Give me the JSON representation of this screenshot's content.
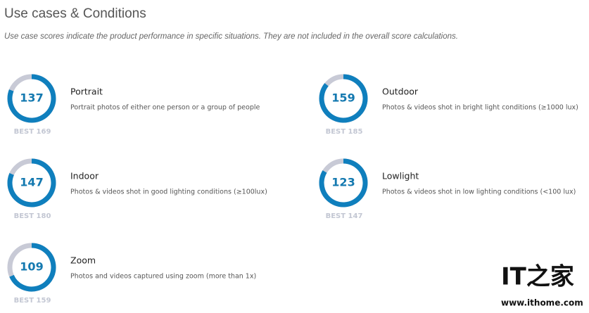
{
  "header": {
    "title": "Use cases & Conditions",
    "subtitle": "Use case scores indicate the product performance in specific situations. They are not included in the overall score calculations."
  },
  "items": [
    {
      "score": 137,
      "best": {
        "value": 169,
        "label": "BEST 169"
      },
      "name": "Portrait",
      "description": "Portrait photos of either one person or a group of people"
    },
    {
      "score": 159,
      "best": {
        "value": 185,
        "label": "BEST 185"
      },
      "name": "Outdoor",
      "description": "Photos & videos shot in bright light conditions (≥1000 lux)"
    },
    {
      "score": 147,
      "best": {
        "value": 180,
        "label": "BEST 180"
      },
      "name": "Indoor",
      "description": "Photos & videos shot in good lighting conditions (≥100lux)"
    },
    {
      "score": 123,
      "best": {
        "value": 147,
        "label": "BEST 147"
      },
      "name": "Lowlight",
      "description": "Photos & videos shot in low lighting conditions (<100 lux)"
    },
    {
      "score": 109,
      "best": {
        "value": 159,
        "label": "BEST 159"
      },
      "name": "Zoom",
      "description": "Photos and videos captured using zoom (more than 1x)"
    }
  ],
  "watermark": {
    "logo": "IT之家",
    "url": "www.ithome.com"
  }
}
